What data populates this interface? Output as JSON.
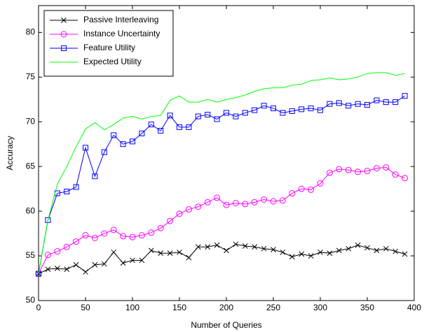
{
  "chart_data": {
    "type": "line",
    "xlabel": "Number of Queries",
    "ylabel": "Accuracy",
    "x": [
      0,
      10,
      20,
      30,
      40,
      50,
      60,
      70,
      80,
      90,
      100,
      110,
      120,
      130,
      140,
      150,
      160,
      170,
      180,
      190,
      200,
      210,
      220,
      230,
      240,
      250,
      260,
      270,
      280,
      290,
      300,
      310,
      320,
      330,
      340,
      350,
      360,
      370,
      380,
      390
    ],
    "series": [
      {
        "name": "Passive Interleaving",
        "color": "#000000",
        "marker": "x",
        "values": [
          53,
          53.5,
          53.6,
          53.5,
          54,
          53.2,
          54,
          54.1,
          55.4,
          54.2,
          54.5,
          54.5,
          55.6,
          55.3,
          55.3,
          55.4,
          54.8,
          56,
          56,
          56.2,
          55.6,
          56.3,
          56.1,
          56,
          55.8,
          55.7,
          55.4,
          54.9,
          55.2,
          55,
          55.4,
          55.3,
          55.6,
          55.8,
          56.2,
          55.9,
          55.6,
          55.8,
          55.5,
          55.2
        ]
      },
      {
        "name": "Instance Uncertainty",
        "color": "#ff00ff",
        "marker": "o",
        "values": [
          53,
          55.1,
          55.5,
          56,
          56.6,
          57.3,
          57,
          57.5,
          57.9,
          57.2,
          57.1,
          57.3,
          57.6,
          58.1,
          58.9,
          59.7,
          60.2,
          60.5,
          61,
          61.5,
          60.7,
          60.9,
          60.8,
          61,
          61.3,
          61.1,
          61.2,
          62,
          62.5,
          62.4,
          63.1,
          64.3,
          64.7,
          64.6,
          64.4,
          64.5,
          64.8,
          64.9,
          64.1,
          63.7
        ]
      },
      {
        "name": "Feature Utility",
        "color": "#0000ff",
        "marker": "s",
        "values": [
          53,
          59,
          62,
          62.2,
          62.7,
          67.1,
          63.9,
          66.6,
          68.5,
          67.5,
          67.8,
          68.7,
          69.7,
          69,
          70.7,
          69.4,
          69.4,
          70.6,
          70.8,
          70.3,
          71,
          70.6,
          71,
          71.3,
          71.8,
          71.5,
          71,
          71.2,
          71.4,
          71.5,
          71.3,
          72,
          72.1,
          71.8,
          72,
          71.9,
          72.4,
          72.2,
          72.2,
          72.9
        ]
      },
      {
        "name": "Expected Utility",
        "color": "#00ff00",
        "marker": null,
        "values": [
          53,
          59,
          63,
          65,
          67.2,
          69.2,
          69.9,
          69.1,
          69.7,
          70.4,
          70.6,
          70.3,
          70.6,
          70.7,
          72.4,
          72.9,
          72.2,
          72.2,
          72.5,
          72.2,
          72.5,
          72.7,
          73,
          73.4,
          73.7,
          73.8,
          73.8,
          74.1,
          74.2,
          74.6,
          74.7,
          74.9,
          74.7,
          74.8,
          75,
          75.4,
          75.5,
          75.5,
          75.2,
          75.4
        ]
      }
    ],
    "xlim": [
      0,
      400
    ],
    "xticks": [
      0,
      50,
      100,
      150,
      200,
      250,
      300,
      350,
      400
    ],
    "ylim": [
      50,
      83
    ],
    "yticks": [
      50,
      55,
      60,
      65,
      70,
      75,
      80
    ],
    "legend": "upper left"
  }
}
